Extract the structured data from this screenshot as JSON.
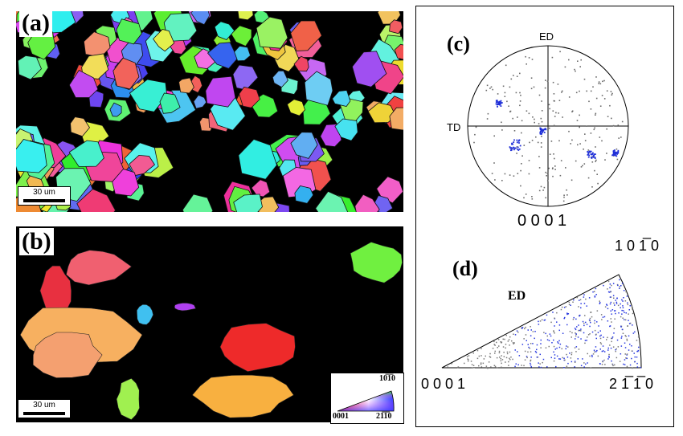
{
  "panel_a": {
    "label": "(a)",
    "scale_bar": "30 um"
  },
  "panel_b": {
    "label": "(b)",
    "scale_bar": "30 um"
  },
  "legend_triangle": {
    "top": "10̅1̅0",
    "left": "0001",
    "right": "21̅1̅0"
  },
  "panel_c": {
    "label": "(c)",
    "axis_top": "ED",
    "axis_left": "TD",
    "pole": "0 0 0 1"
  },
  "panel_d": {
    "label": "(d)",
    "axis_label": "ED",
    "corner_left": "0 0 0 1",
    "corner_top": "1 0 1̅ 0",
    "corner_right": "2 1̅ 1̅ 0"
  },
  "colors": {
    "background": "#000000",
    "pole_blue": "#1f2fd8",
    "pole_gray": "#6a6a6a",
    "frame": "#000000"
  }
}
